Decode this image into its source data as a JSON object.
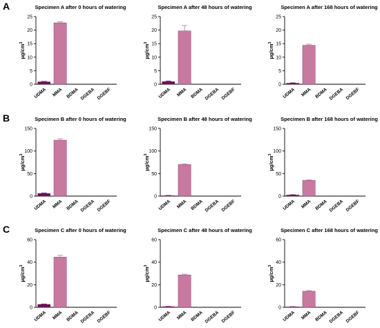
{
  "colors": {
    "UDMA": "#6b0f5a",
    "MMA": "#c8799f",
    "axis": "#000000"
  },
  "rows": [
    {
      "letter": "A"
    },
    {
      "letter": "B"
    },
    {
      "letter": "C"
    }
  ],
  "chart_data": [
    {
      "type": "bar",
      "title": "Specimen A after 0 hours of watering",
      "ylabel": "µg/cm3",
      "categories": [
        "UDMA",
        "MMA",
        "BDMA",
        "DGEBA",
        "DGEBF"
      ],
      "values": [
        0.9,
        22.7,
        0,
        0,
        0
      ],
      "errors": [
        0.15,
        0.4,
        0,
        0,
        0
      ],
      "ylim": [
        0,
        25
      ],
      "yticks": [
        0,
        5,
        10,
        15,
        20,
        25
      ]
    },
    {
      "type": "bar",
      "title": "Specimen A after 48 hours of watering",
      "ylabel": "µg/cm3",
      "categories": [
        "UDMA",
        "MMA",
        "BDMA",
        "DGEBA",
        "DGEBF"
      ],
      "values": [
        1.0,
        19.7,
        0,
        0,
        0
      ],
      "errors": [
        0.2,
        2.0,
        0,
        0,
        0
      ],
      "ylim": [
        0,
        25
      ],
      "yticks": [
        0,
        5,
        10,
        15,
        20,
        25
      ]
    },
    {
      "type": "bar",
      "title": "Specimen A after 168 hours of watering",
      "ylabel": "µg/cm3",
      "categories": [
        "UDMA",
        "MMA",
        "BDMA",
        "DGEBA",
        "DGEBF"
      ],
      "values": [
        0.4,
        14.4,
        0,
        0,
        0
      ],
      "errors": [
        0.1,
        0.4,
        0,
        0,
        0
      ],
      "ylim": [
        0,
        25
      ],
      "yticks": [
        0,
        5,
        10,
        15,
        20,
        25
      ]
    },
    {
      "type": "bar",
      "title": "Specimen B after 0 hours of watering",
      "ylabel": "µg/cm3",
      "categories": [
        "UDMA",
        "MMA",
        "BDMA",
        "DGEBA",
        "DGEBF"
      ],
      "values": [
        6,
        124,
        0,
        0,
        0
      ],
      "errors": [
        0.8,
        3,
        0,
        0,
        0
      ],
      "ylim": [
        0,
        150
      ],
      "yticks": [
        0,
        50,
        100,
        150
      ]
    },
    {
      "type": "bar",
      "title": "Specimen B after 48 hours of watering",
      "ylabel": "µg/cm3",
      "categories": [
        "UDMA",
        "MMA",
        "BDMA",
        "DGEBA",
        "DGEBF"
      ],
      "values": [
        1,
        70,
        0,
        0,
        0
      ],
      "errors": [
        0.4,
        1.5,
        0,
        0,
        0
      ],
      "ylim": [
        0,
        150
      ],
      "yticks": [
        0,
        50,
        100,
        150
      ]
    },
    {
      "type": "bar",
      "title": "Specimen B after 168 hours of watering",
      "ylabel": "µg/cm3",
      "categories": [
        "UDMA",
        "MMA",
        "BDMA",
        "DGEBA",
        "DGEBF"
      ],
      "values": [
        2.5,
        35,
        0,
        0,
        0
      ],
      "errors": [
        0.5,
        1,
        0,
        0,
        0
      ],
      "ylim": [
        0,
        150
      ],
      "yticks": [
        0,
        50,
        100,
        150
      ]
    },
    {
      "type": "bar",
      "title": "Specimen C after 0 hours of watering",
      "ylabel": "µg/cm3",
      "categories": [
        "UDMA",
        "MMA",
        "BDMA",
        "DGEBA",
        "DGEBF"
      ],
      "values": [
        2.6,
        44.5,
        0,
        0,
        0
      ],
      "errors": [
        0.3,
        1.5,
        0,
        0,
        0
      ],
      "ylim": [
        0,
        60
      ],
      "yticks": [
        0,
        20,
        40,
        60
      ]
    },
    {
      "type": "bar",
      "title": "Specimen C after 48 hours of watering",
      "ylabel": "µg/cm3",
      "categories": [
        "UDMA",
        "MMA",
        "BDMA",
        "DGEBA",
        "DGEBF"
      ],
      "values": [
        0.6,
        28.7,
        0,
        0,
        0
      ],
      "errors": [
        0.15,
        0.6,
        0,
        0,
        0
      ],
      "ylim": [
        0,
        60
      ],
      "yticks": [
        0,
        20,
        40,
        60
      ]
    },
    {
      "type": "bar",
      "title": "Specimen C after 168 hours of watering",
      "ylabel": "µg/cm3",
      "categories": [
        "UDMA",
        "MMA",
        "BDMA",
        "DGEBA",
        "DGEBF"
      ],
      "values": [
        0.4,
        14.3,
        0,
        0,
        0
      ],
      "errors": [
        0.1,
        0.4,
        0,
        0,
        0
      ],
      "ylim": [
        0,
        60
      ],
      "yticks": [
        0,
        20,
        40,
        60
      ]
    }
  ]
}
